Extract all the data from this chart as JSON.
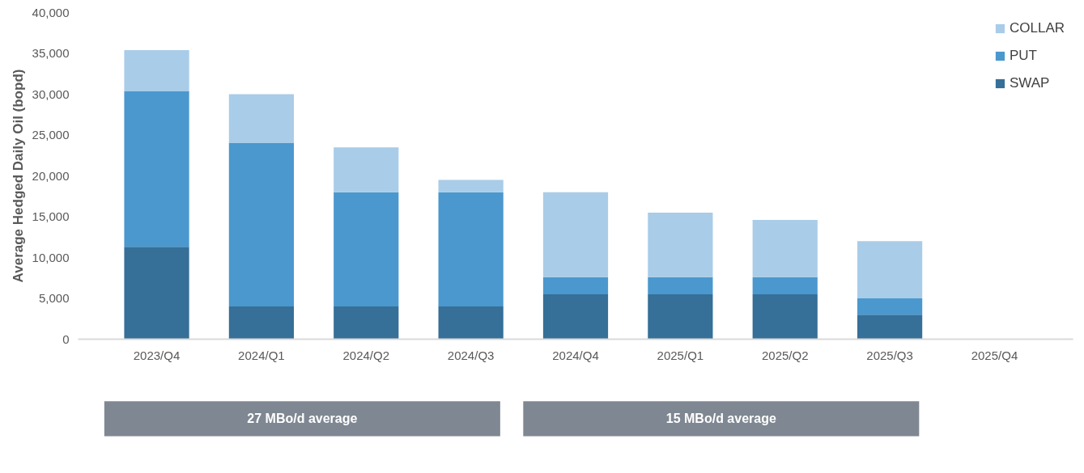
{
  "chart_data": {
    "type": "bar",
    "stacked": true,
    "ylabel": "Average Hedged Daily Oil (bopd)",
    "categories": [
      "2023/Q4",
      "2024/Q1",
      "2024/Q2",
      "2024/Q3",
      "2024/Q4",
      "2025/Q1",
      "2025/Q2",
      "2025/Q3",
      "2025/Q4"
    ],
    "series": [
      {
        "name": "SWAP",
        "color": "#366f97",
        "values": [
          11300,
          4000,
          4000,
          4000,
          5500,
          5500,
          5500,
          3000,
          null
        ]
      },
      {
        "name": "PUT",
        "color": "#4a98ce",
        "values": [
          19100,
          20000,
          14000,
          14000,
          2100,
          2100,
          2100,
          2000,
          null
        ]
      },
      {
        "name": "COLLAR",
        "color": "#a9cce8",
        "values": [
          5000,
          6000,
          5500,
          1500,
          10400,
          7900,
          7000,
          7000,
          null
        ]
      }
    ],
    "ylim": [
      0,
      40000
    ],
    "yticks": [
      {
        "value": 0,
        "label": "0"
      },
      {
        "value": 5000,
        "label": "5,000"
      },
      {
        "value": 10000,
        "label": "10,000"
      },
      {
        "value": 15000,
        "label": "15,000"
      },
      {
        "value": 20000,
        "label": "20,000"
      },
      {
        "value": 25000,
        "label": "25,000"
      },
      {
        "value": 30000,
        "label": "30,000"
      },
      {
        "value": 35000,
        "label": "35,000"
      },
      {
        "value": 40000,
        "label": "40,000"
      }
    ],
    "grid": false,
    "legend": "top right",
    "annotations": [
      "27 MBo/d average",
      "15 MBo/d average"
    ]
  }
}
